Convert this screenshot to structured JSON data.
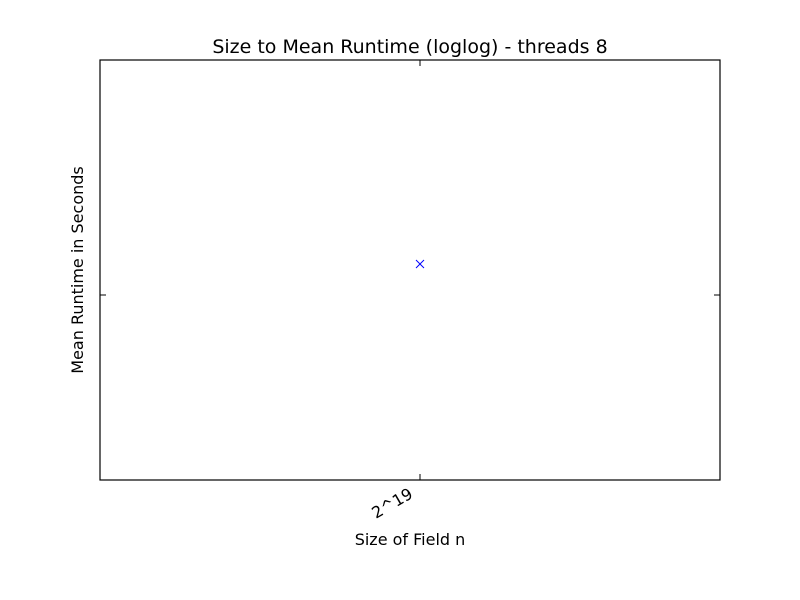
{
  "chart_data": {
    "type": "scatter",
    "title": "Size to Mean Runtime (loglog) - threads 8",
    "xlabel": "Size of Field n",
    "ylabel": "Mean Runtime in Seconds",
    "x_scale": "log",
    "y_scale": "log",
    "x_ticks": [
      "2^19"
    ],
    "marker": "x",
    "marker_color": "#0000ff",
    "grid": false,
    "legend": "none",
    "series": [
      {
        "points": [
          {
            "x": 524288,
            "y": null
          }
        ]
      }
    ]
  }
}
